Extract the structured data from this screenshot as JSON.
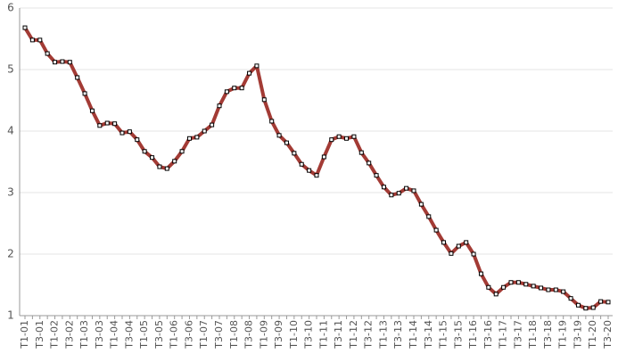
{
  "chart_data": {
    "type": "line",
    "categories": [
      "T1-01",
      null,
      "T3-01",
      null,
      "T1-02",
      null,
      "T3-02",
      null,
      "T1-03",
      null,
      "T3-03",
      null,
      "T1-04",
      null,
      "T3-04",
      null,
      "T1-05",
      null,
      "T3-05",
      null,
      "T1-06",
      null,
      "T3-06",
      null,
      "T1-07",
      null,
      "T3-07",
      null,
      "T1-08",
      null,
      "T3-08",
      null,
      "T1-09",
      null,
      "T3-09",
      null,
      "T1-10",
      null,
      "T3-10",
      null,
      "T1-11",
      null,
      "T3-11",
      null,
      "T1-12",
      null,
      "T3-12",
      null,
      "T1-13",
      null,
      "T3-13",
      null,
      "T1-14",
      null,
      "T3-14",
      null,
      "T1-15",
      null,
      "T3-15",
      null,
      "T1-16",
      null,
      "T3-16",
      null,
      "T1-17",
      null,
      "T3-17",
      null,
      "T1-18",
      null,
      "T3-18",
      null,
      "T1-19",
      null,
      "T3-19",
      null,
      "T1-20",
      null,
      "T3-20"
    ],
    "values": [
      5.68,
      5.48,
      5.48,
      5.26,
      5.12,
      5.13,
      5.12,
      4.87,
      4.61,
      4.33,
      4.09,
      4.13,
      4.12,
      3.97,
      3.99,
      3.86,
      3.67,
      3.57,
      3.42,
      3.39,
      3.51,
      3.67,
      3.88,
      3.9,
      4.0,
      4.1,
      4.41,
      4.64,
      4.7,
      4.7,
      4.94,
      5.06,
      4.51,
      4.16,
      3.93,
      3.81,
      3.64,
      3.46,
      3.36,
      3.28,
      3.58,
      3.86,
      3.91,
      3.88,
      3.91,
      3.65,
      3.48,
      3.28,
      3.09,
      2.96,
      2.99,
      3.07,
      3.03,
      2.81,
      2.61,
      2.39,
      2.19,
      2.01,
      2.13,
      2.19,
      2.0,
      1.68,
      1.46,
      1.35,
      1.46,
      1.54,
      1.54,
      1.51,
      1.48,
      1.45,
      1.42,
      1.42,
      1.39,
      1.28,
      1.17,
      1.12,
      1.13,
      1.23,
      1.22
    ],
    "color": "#a33b35",
    "ylim": [
      1,
      6
    ],
    "yticks": [
      1,
      2,
      3,
      4,
      5,
      6
    ],
    "grid": true
  }
}
